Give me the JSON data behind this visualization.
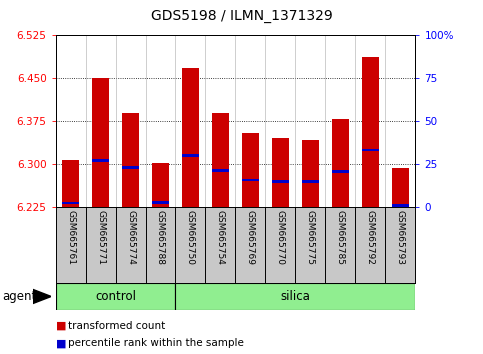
{
  "title": "GDS5198 / ILMN_1371329",
  "samples": [
    "GSM665761",
    "GSM665771",
    "GSM665774",
    "GSM665788",
    "GSM665750",
    "GSM665754",
    "GSM665769",
    "GSM665770",
    "GSM665775",
    "GSM665785",
    "GSM665792",
    "GSM665793"
  ],
  "groups": [
    "control",
    "control",
    "control",
    "control",
    "silica",
    "silica",
    "silica",
    "silica",
    "silica",
    "silica",
    "silica",
    "silica"
  ],
  "bar_tops": [
    6.308,
    6.451,
    6.39,
    6.302,
    6.468,
    6.39,
    6.355,
    6.345,
    6.342,
    6.379,
    6.487,
    6.293
  ],
  "blue_marks": [
    6.232,
    6.306,
    6.294,
    6.233,
    6.315,
    6.289,
    6.272,
    6.27,
    6.27,
    6.287,
    6.325,
    6.228
  ],
  "bar_base": 6.225,
  "ylim": [
    6.225,
    6.525
  ],
  "yticks": [
    6.225,
    6.3,
    6.375,
    6.45,
    6.525
  ],
  "right_yticks": [
    0,
    25,
    50,
    75,
    100
  ],
  "bar_color": "#cc0000",
  "blue_color": "#0000cc",
  "control_color": "#90ee90",
  "silica_color": "#90ee90",
  "bg_color": "#c8c8c8",
  "agent_label": "agent",
  "control_label": "control",
  "silica_label": "silica",
  "legend_red": "transformed count",
  "legend_blue": "percentile rank within the sample",
  "bar_width": 0.55,
  "n_control": 4,
  "n_silica": 8
}
